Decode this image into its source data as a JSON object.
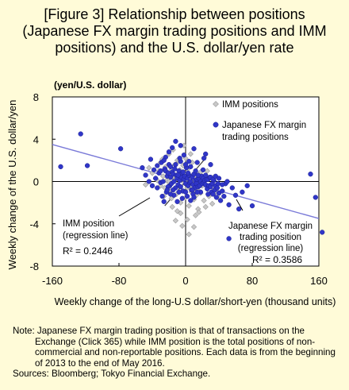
{
  "title_lines": [
    "[Figure 3] Relationship between positions",
    "(Japanese FX margin trading positions and IMM",
    "positions) and the U.S. dollar/yen rate"
  ],
  "chart_data": {
    "type": "scatter",
    "title": "[Figure 3] Relationship between positions (Japanese FX margin trading positions and IMM positions) and the U.S. dollar/yen rate",
    "xlabel": "Weekly change of the long-U.S dollar/short-yen (thousand units)",
    "ylabel": "Weekly change of the U.S. dollar/yen",
    "yunit": "(yen/U.S. dollar)",
    "xlim": [
      -160,
      160
    ],
    "ylim": [
      -8,
      8
    ],
    "x_ticks": [
      "-160",
      "-80",
      "0",
      "80",
      "160"
    ],
    "y_ticks": [
      "8",
      "4",
      "0",
      "-4",
      "-8"
    ],
    "grid": false,
    "legend_position": "top-right",
    "colors": {
      "imm": "#c8c8c8",
      "jp": "#3036c8",
      "jp_line": "#7a7ad8",
      "imm_line": "#3a3a3a",
      "background": "#fffbd8"
    },
    "series": [
      {
        "name": "IMM positions",
        "marker": "diamond",
        "points": [
          [
            -40,
            0.8
          ],
          [
            -36,
            0.3
          ],
          [
            -32,
            1.0
          ],
          [
            -30,
            -0.4
          ],
          [
            -28,
            2.1
          ],
          [
            -27,
            0.5
          ],
          [
            -25,
            -0.6
          ],
          [
            -24,
            1.4
          ],
          [
            -23,
            0.1
          ],
          [
            -22,
            -1.0
          ],
          [
            -21,
            0.7
          ],
          [
            -20,
            2.6
          ],
          [
            -19,
            -0.2
          ],
          [
            -18,
            1.0
          ],
          [
            -17,
            -1.6
          ],
          [
            -16,
            0.4
          ],
          [
            -15,
            3.0
          ],
          [
            -14,
            -0.7
          ],
          [
            -13,
            1.6
          ],
          [
            -12,
            0.2
          ],
          [
            -11,
            -1.2
          ],
          [
            -10,
            2.0
          ],
          [
            -9,
            0.6
          ],
          [
            -8,
            -0.4
          ],
          [
            -7,
            1.1
          ],
          [
            -6,
            -2.0
          ],
          [
            -5,
            0.3
          ],
          [
            -4,
            -0.9
          ],
          [
            -3,
            1.5
          ],
          [
            -2,
            -0.1
          ],
          [
            -1,
            0.8
          ],
          [
            0,
            -1.5
          ],
          [
            1,
            0.2
          ],
          [
            2,
            -0.6
          ],
          [
            3,
            1.2
          ],
          [
            4,
            -2.3
          ],
          [
            5,
            -0.3
          ],
          [
            6,
            0.5
          ],
          [
            7,
            -1.0
          ],
          [
            8,
            -0.5
          ],
          [
            9,
            0.1
          ],
          [
            10,
            -1.7
          ],
          [
            11,
            -0.8
          ],
          [
            12,
            0.6
          ],
          [
            13,
            -1.3
          ],
          [
            14,
            -0.2
          ],
          [
            15,
            -2.6
          ],
          [
            16,
            -0.9
          ],
          [
            17,
            0.3
          ],
          [
            18,
            -1.1
          ],
          [
            20,
            -0.4
          ],
          [
            22,
            -1.8
          ],
          [
            24,
            0.2
          ],
          [
            26,
            -0.7
          ],
          [
            28,
            -1.4
          ],
          [
            30,
            -0.3
          ],
          [
            32,
            -2.1
          ],
          [
            34,
            0.4
          ],
          [
            36,
            -1.0
          ],
          [
            38,
            -0.6
          ],
          [
            40,
            -1.6
          ],
          [
            44,
            -0.9
          ],
          [
            48,
            -0.2
          ],
          [
            -44,
            1.3
          ],
          [
            -48,
            -0.3
          ],
          [
            -6,
            -3.0
          ],
          [
            2,
            -3.6
          ],
          [
            -10,
            -2.8
          ],
          [
            12,
            -3.2
          ],
          [
            -2,
            3.4
          ],
          [
            6,
            2.6
          ],
          [
            -26,
            -1.4
          ],
          [
            26,
            1.0
          ],
          [
            -4,
            -4.2
          ],
          [
            4,
            -5.0
          ],
          [
            -8,
            1.9
          ],
          [
            18,
            0.9
          ],
          [
            -16,
            -2.4
          ],
          [
            16,
            -2.9
          ],
          [
            -20,
            0.0
          ],
          [
            20,
            0.5
          ],
          [
            -34,
            0.1
          ],
          [
            34,
            -0.8
          ],
          [
            -12,
            -3.7
          ],
          [
            10,
            -4.3
          ],
          [
            0,
            2.2
          ],
          [
            -30,
            1.8
          ],
          [
            24,
            -2.4
          ],
          [
            8,
            1.8
          ],
          [
            -18,
            -0.9
          ]
        ]
      },
      {
        "name": "Japanese FX margin trading positions",
        "marker": "circle",
        "points": [
          [
            -150,
            1.4
          ],
          [
            -126,
            4.5
          ],
          [
            -118,
            1.5
          ],
          [
            -78,
            3.1
          ],
          [
            -42,
            2.1
          ],
          [
            -34,
            -0.6
          ],
          [
            -30,
            -0.1
          ],
          [
            -28,
            -1.4
          ],
          [
            -26,
            -1.9
          ],
          [
            -25,
            1.2
          ],
          [
            -24,
            1.0
          ],
          [
            -23,
            -1.0
          ],
          [
            -22,
            0.5
          ],
          [
            -21,
            0.8
          ],
          [
            -20,
            1.6
          ],
          [
            -19,
            -0.4
          ],
          [
            -18,
            0.4
          ],
          [
            -17,
            -0.2
          ],
          [
            -16,
            0.9
          ],
          [
            -15,
            0.7
          ],
          [
            -14,
            0.0
          ],
          [
            -13,
            1.2
          ],
          [
            -12,
            -0.6
          ],
          [
            -11,
            0.6
          ],
          [
            -10,
            0.3
          ],
          [
            -9,
            -0.3
          ],
          [
            -8,
            1.0
          ],
          [
            -7,
            0.1
          ],
          [
            -6,
            -0.5
          ],
          [
            -5,
            0.4
          ],
          [
            -4,
            0.8
          ],
          [
            -3,
            -0.9
          ],
          [
            -2,
            0.2
          ],
          [
            -1,
            0.5
          ],
          [
            0,
            -0.2
          ],
          [
            1,
            1.3
          ],
          [
            2,
            0.3
          ],
          [
            3,
            -0.4
          ],
          [
            4,
            0.6
          ],
          [
            5,
            -0.1
          ],
          [
            6,
            0.0
          ],
          [
            7,
            -0.8
          ],
          [
            8,
            0.4
          ],
          [
            9,
            -0.3
          ],
          [
            10,
            0.7
          ],
          [
            11,
            -0.6
          ],
          [
            12,
            0.1
          ],
          [
            13,
            -0.2
          ],
          [
            14,
            0.2
          ],
          [
            15,
            -0.5
          ],
          [
            16,
            0.3
          ],
          [
            17,
            -0.4
          ],
          [
            18,
            0.0
          ],
          [
            19,
            0.5
          ],
          [
            20,
            -0.2
          ],
          [
            21,
            0.3
          ],
          [
            22,
            -0.1
          ],
          [
            23,
            0.1
          ],
          [
            24,
            -0.3
          ],
          [
            25,
            0.2
          ],
          [
            26,
            -0.7
          ],
          [
            27,
            0.2
          ],
          [
            28,
            -0.4
          ],
          [
            29,
            0.4
          ],
          [
            30,
            -0.5
          ],
          [
            31,
            -1.0
          ],
          [
            32,
            -0.2
          ],
          [
            33,
            -1.2
          ],
          [
            34,
            0.1
          ],
          [
            35,
            -0.8
          ],
          [
            36,
            -0.4
          ],
          [
            37,
            -1.5
          ],
          [
            38,
            -0.6
          ],
          [
            40,
            -1.1
          ],
          [
            42,
            -1.8
          ],
          [
            44,
            -0.9
          ],
          [
            46,
            -1.4
          ],
          [
            48,
            -0.2
          ],
          [
            50,
            0.0
          ],
          [
            52,
            -2.2
          ],
          [
            56,
            -0.6
          ],
          [
            60,
            -1.3
          ],
          [
            64,
            -2.6
          ],
          [
            68,
            -1.0
          ],
          [
            74,
            -0.4
          ],
          [
            80,
            -2.3
          ],
          [
            52,
            -5.4
          ],
          [
            150,
            0.7
          ],
          [
            156,
            -1.5
          ],
          [
            164,
            -4.8
          ],
          [
            -32,
            0.8
          ],
          [
            -29,
            1.8
          ],
          [
            -27,
            0.0
          ],
          [
            -24,
            2.3
          ],
          [
            -21,
            -0.5
          ],
          [
            -18,
            1.4
          ],
          [
            -15,
            -0.8
          ],
          [
            -12,
            1.6
          ],
          [
            -9,
            0.6
          ],
          [
            -6,
            1.9
          ],
          [
            -3,
            0.9
          ],
          [
            0,
            1.6
          ],
          [
            3,
            0.8
          ],
          [
            6,
            1.4
          ],
          [
            9,
            -1.2
          ],
          [
            12,
            1.0
          ],
          [
            15,
            0.6
          ],
          [
            18,
            -1.0
          ],
          [
            21,
            1.1
          ],
          [
            24,
            0.6
          ],
          [
            27,
            -1.2
          ],
          [
            30,
            0.4
          ],
          [
            33,
            0.2
          ],
          [
            36,
            0.5
          ],
          [
            39,
            -0.2
          ],
          [
            -36,
            0.3
          ],
          [
            -38,
            1.1
          ],
          [
            -40,
            -0.4
          ],
          [
            -8,
            -1.0
          ],
          [
            -4,
            -1.6
          ],
          [
            2,
            -1.4
          ],
          [
            6,
            -1.8
          ],
          [
            10,
            -1.5
          ],
          [
            14,
            -1.0
          ],
          [
            -14,
            -1.3
          ],
          [
            -10,
            -1.9
          ],
          [
            0,
            -1.0
          ],
          [
            4,
            1.9
          ],
          [
            -20,
            2.8
          ],
          [
            -16,
            3.2
          ],
          [
            -12,
            3.8
          ],
          [
            -6,
            3.4
          ],
          [
            10,
            3.1
          ],
          [
            22,
            2.2
          ],
          [
            30,
            1.6
          ],
          [
            -26,
            2.0
          ],
          [
            -30,
            1.0
          ],
          [
            -34,
            1.5
          ],
          [
            40,
            0.3
          ],
          [
            44,
            -0.3
          ],
          [
            -48,
            0.6
          ],
          [
            -44,
            0.0
          ],
          [
            -52,
            1.3
          ],
          [
            24,
            2.6
          ],
          [
            -2,
            2.5
          ],
          [
            14,
            1.8
          ],
          [
            -18,
            -1.2
          ],
          [
            -22,
            -0.8
          ],
          [
            8,
            -0.8
          ],
          [
            -7,
            2.2
          ]
        ]
      }
    ],
    "regression_lines": [
      {
        "name": "IMM position (regression line)",
        "from": [
          -25,
          -2.3
        ],
        "to": [
          25,
          2.3
        ],
        "r2_label": "R² = 0.2446"
      },
      {
        "name": "Japanese FX margin trading position (regression line)",
        "from": [
          -160,
          3.5
        ],
        "to": [
          160,
          -3.5
        ],
        "r2_label": "R² = 0.3586"
      }
    ],
    "annotations": [
      {
        "text_lines": [
          "IMM position",
          "(regression line)"
        ],
        "r2": "R² = 0.2446"
      },
      {
        "text_lines": [
          "Japanese FX margin",
          "trading position",
          "(regression line)"
        ],
        "r2": "R² = 0.3586"
      }
    ],
    "legend": [
      "IMM positions",
      "Japanese FX margin",
      "trading positions"
    ]
  },
  "notes": {
    "note": "Note: Japanese FX margin trading position is that of transactions on the Exchange (Click 365) while IMM position is the total positions of non-commercial and non-reportable positions. Each data is from the beginning of 2013 to the end of May 2016.",
    "sources": "Sources: Bloomberg; Tokyo Financial Exchange."
  }
}
